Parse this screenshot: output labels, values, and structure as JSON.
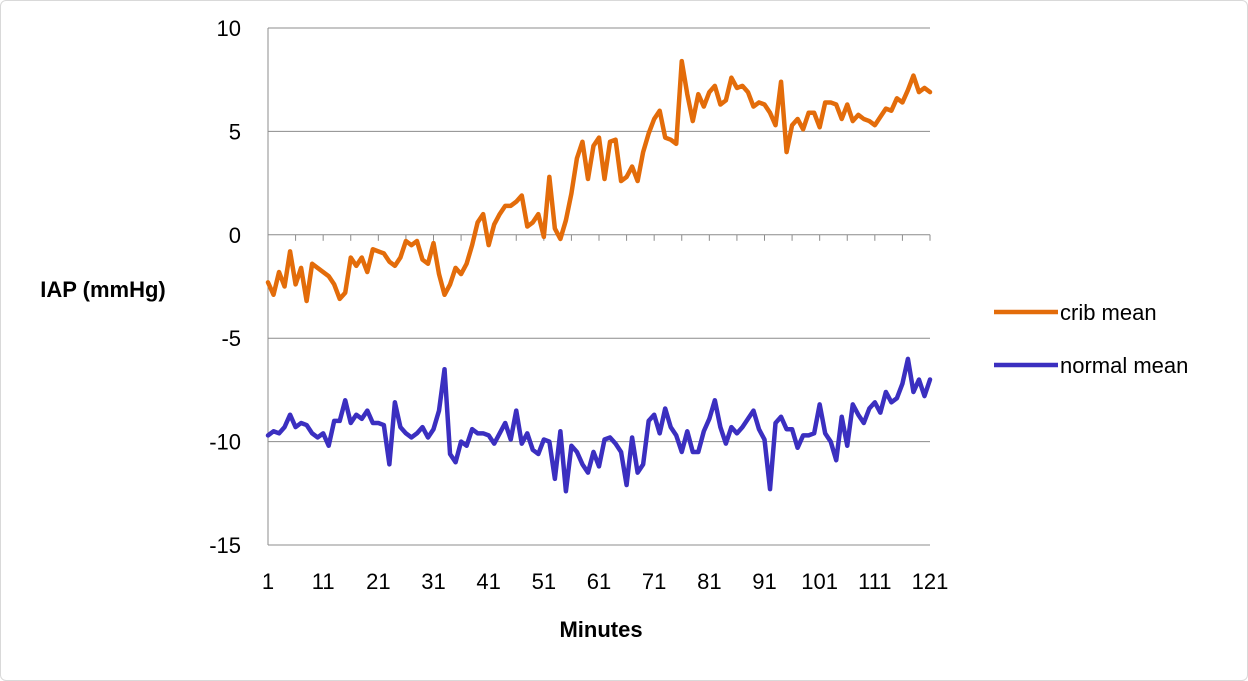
{
  "chart_data": {
    "type": "line",
    "ylabel": "IAP (mmHg)",
    "xlabel": "Minutes",
    "ylim": [
      -15,
      10
    ],
    "yticks": [
      10,
      5,
      0,
      -5,
      -10,
      -15
    ],
    "xticks": [
      1,
      11,
      21,
      31,
      41,
      51,
      61,
      71,
      81,
      91,
      101,
      111,
      121
    ],
    "xlim": [
      1,
      121
    ],
    "grid": "horizontal",
    "legend_position": "right",
    "series": [
      {
        "name": "crib mean",
        "color": "#E36C0A",
        "values": [
          -2.3,
          -2.9,
          -1.8,
          -2.5,
          -0.8,
          -2.4,
          -1.6,
          -3.2,
          -1.4,
          -1.6,
          -1.8,
          -2.0,
          -2.4,
          -3.1,
          -2.8,
          -1.1,
          -1.5,
          -1.1,
          -1.8,
          -0.7,
          -0.8,
          -0.9,
          -1.3,
          -1.5,
          -1.1,
          -0.3,
          -0.5,
          -0.3,
          -1.2,
          -1.4,
          -0.4,
          -1.9,
          -2.9,
          -2.4,
          -1.6,
          -1.9,
          -1.4,
          -0.5,
          0.6,
          1.0,
          -0.5,
          0.5,
          1.0,
          1.4,
          1.4,
          1.6,
          1.9,
          0.4,
          0.6,
          1.0,
          -0.1,
          2.8,
          0.3,
          -0.2,
          0.7,
          2.0,
          3.7,
          4.5,
          2.7,
          4.3,
          4.7,
          2.7,
          4.5,
          4.6,
          2.6,
          2.8,
          3.3,
          2.6,
          4.0,
          4.9,
          5.6,
          6.0,
          4.7,
          4.6,
          4.4,
          8.4,
          6.8,
          5.5,
          6.8,
          6.2,
          6.9,
          7.2,
          6.3,
          6.5,
          7.6,
          7.1,
          7.2,
          6.9,
          6.2,
          6.4,
          6.3,
          5.9,
          5.3,
          7.4,
          4.0,
          5.3,
          5.6,
          5.1,
          5.9,
          5.9,
          5.2,
          6.4,
          6.4,
          6.3,
          5.6,
          6.3,
          5.5,
          5.8,
          5.6,
          5.5,
          5.3,
          5.7,
          6.1,
          6.0,
          6.6,
          6.4,
          7.0,
          7.7,
          6.9,
          7.1,
          6.9
        ]
      },
      {
        "name": "normal mean",
        "color": "#3B2FC0",
        "values": [
          -9.7,
          -9.5,
          -9.6,
          -9.3,
          -8.7,
          -9.3,
          -9.1,
          -9.2,
          -9.6,
          -9.8,
          -9.6,
          -10.2,
          -9.0,
          -9.0,
          -8.0,
          -9.1,
          -8.7,
          -8.9,
          -8.5,
          -9.1,
          -9.1,
          -9.2,
          -11.1,
          -8.1,
          -9.3,
          -9.6,
          -9.8,
          -9.6,
          -9.3,
          -9.8,
          -9.4,
          -8.5,
          -6.5,
          -10.6,
          -11.0,
          -10.0,
          -10.2,
          -9.4,
          -9.6,
          -9.6,
          -9.7,
          -10.1,
          -9.6,
          -9.1,
          -9.9,
          -8.5,
          -10.1,
          -9.6,
          -10.4,
          -10.6,
          -9.9,
          -10.0,
          -11.8,
          -9.5,
          -12.4,
          -10.2,
          -10.5,
          -11.1,
          -11.5,
          -10.5,
          -11.2,
          -9.9,
          -9.8,
          -10.1,
          -10.5,
          -12.1,
          -9.8,
          -11.5,
          -11.1,
          -9.0,
          -8.7,
          -9.6,
          -8.4,
          -9.3,
          -9.7,
          -10.5,
          -9.5,
          -10.5,
          -10.5,
          -9.5,
          -8.9,
          -8.0,
          -9.3,
          -10.1,
          -9.3,
          -9.6,
          -9.3,
          -8.9,
          -8.5,
          -9.4,
          -9.9,
          -12.3,
          -9.1,
          -8.8,
          -9.4,
          -9.4,
          -10.3,
          -9.7,
          -9.7,
          -9.6,
          -8.2,
          -9.6,
          -10.0,
          -10.9,
          -8.8,
          -10.2,
          -8.2,
          -8.7,
          -9.1,
          -8.4,
          -8.1,
          -8.6,
          -7.6,
          -8.1,
          -7.9,
          -7.2,
          -6.0,
          -7.6,
          -7.0,
          -7.8,
          -7.0
        ]
      }
    ]
  }
}
